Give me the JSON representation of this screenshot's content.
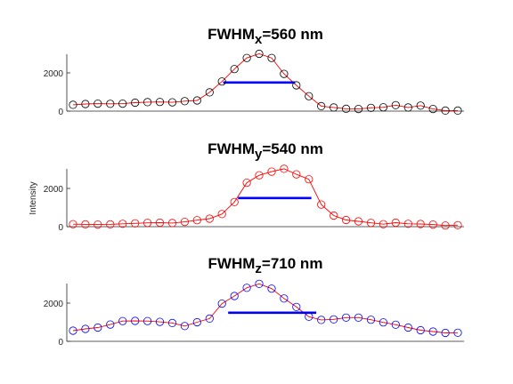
{
  "chart_data": [
    {
      "type": "line",
      "title_main": "FWHM",
      "title_sub": "x",
      "title_rest": "=560 nm",
      "ylabel": "",
      "yticks": [
        "0",
        "2000"
      ],
      "ylim": [
        0,
        3000
      ],
      "xlim": [
        0,
        32
      ],
      "marker_color": "#000000",
      "line_color": "#ff0000",
      "fwhm_color": "#0000ff",
      "values": [
        330,
        370,
        390,
        380,
        390,
        440,
        470,
        480,
        460,
        520,
        560,
        980,
        1550,
        2200,
        2780,
        3000,
        2780,
        1950,
        1350,
        780,
        260,
        190,
        120,
        110,
        170,
        200,
        310,
        190,
        290,
        110,
        30,
        30
      ],
      "fwhm_level": 1500,
      "fwhm_x": [
        12.1,
        17.9
      ]
    },
    {
      "type": "line",
      "title_main": "FWHM",
      "title_sub": "y",
      "title_rest": "=540 nm",
      "ylabel": "Intensity",
      "yticks": [
        "0",
        "2000"
      ],
      "ylim": [
        0,
        3000
      ],
      "xlim": [
        0,
        32
      ],
      "marker_color": "#ff0000",
      "line_color": "#ff0000",
      "fwhm_color": "#0000ff",
      "values": [
        130,
        120,
        110,
        120,
        150,
        170,
        200,
        210,
        190,
        250,
        340,
        420,
        660,
        1290,
        2300,
        2690,
        2880,
        3030,
        2740,
        2480,
        1160,
        580,
        350,
        280,
        200,
        130,
        210,
        150,
        140,
        110,
        60,
        80
      ],
      "fwhm_level": 1500,
      "fwhm_x": [
        13.3,
        19.2
      ]
    },
    {
      "type": "line",
      "title_main": "FWHM",
      "title_sub": "z",
      "title_rest": "=710 nm",
      "ylabel": "",
      "yticks": [
        "0",
        "2000"
      ],
      "ylim": [
        0,
        3000
      ],
      "xlim": [
        0,
        32
      ],
      "marker_color": "#0000ff",
      "line_color": "#ff0000",
      "fwhm_color": "#0000ff",
      "values": [
        560,
        650,
        720,
        880,
        1060,
        1070,
        1060,
        1020,
        960,
        800,
        1000,
        1190,
        1970,
        2370,
        2800,
        3010,
        2760,
        2240,
        1800,
        1290,
        1120,
        1150,
        1240,
        1240,
        1130,
        990,
        870,
        720,
        580,
        510,
        440,
        450
      ],
      "fwhm_level": 1500,
      "fwhm_x": [
        12.5,
        19.6
      ]
    }
  ]
}
